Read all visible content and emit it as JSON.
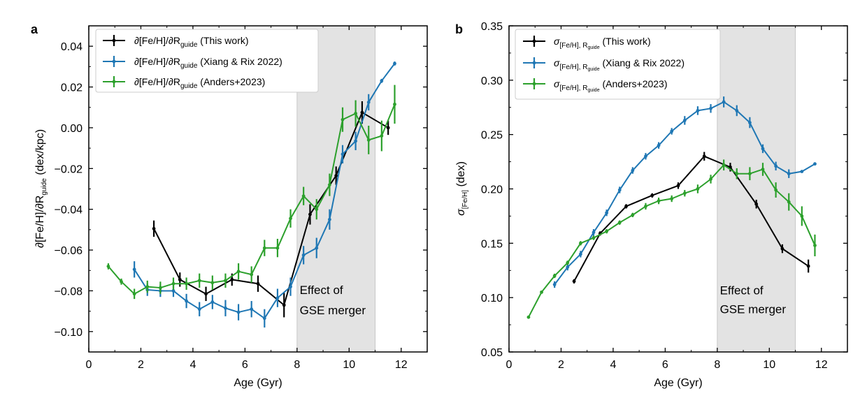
{
  "figure": {
    "colors": {
      "this_work": "#000000",
      "xiang": "#1f77b4",
      "anders": "#2ca02c",
      "shade": "#e3e3e3"
    }
  },
  "chart_data": [
    {
      "type": "line",
      "panel_letter": "a",
      "xlabel": "Age (Gyr)",
      "ylabel": {
        "main": "∂[Fe/H]/∂R",
        "sub": "guide",
        "tail": " (dex/kpc)"
      },
      "xlim": [
        0,
        13
      ],
      "ylim": [
        -0.11,
        0.05
      ],
      "xticks": [
        0,
        2,
        4,
        6,
        8,
        10,
        12
      ],
      "xtick_labels": [
        "0",
        "2",
        "4",
        "6",
        "8",
        "10",
        "12"
      ],
      "yticks": [
        -0.1,
        -0.08,
        -0.06,
        -0.04,
        -0.02,
        0.0,
        0.02,
        0.04
      ],
      "ytick_labels": [
        "−0.10",
        "−0.08",
        "−0.06",
        "−0.04",
        "−0.02",
        "0.00",
        "0.02",
        "0.04"
      ],
      "shaded_region": {
        "x": [
          8,
          11
        ]
      },
      "annotation": {
        "line1": "Effect of",
        "line2": "GSE merger",
        "x": 8.1,
        "y1": -0.0815,
        "y2": -0.0915
      },
      "legend_loc": "upper left",
      "series": [
        {
          "name": "This work",
          "legend": {
            "main": "∂[Fe/H]/∂R",
            "sub": "guide",
            "tail": " (This work)"
          },
          "color_key": "this_work",
          "x": [
            2.5,
            3.5,
            4.5,
            5.5,
            6.5,
            7.5,
            8.5,
            9.5,
            10.5,
            11.5
          ],
          "y": [
            -0.0495,
            -0.0745,
            -0.0815,
            -0.0745,
            -0.0765,
            -0.087,
            -0.0425,
            -0.0235,
            0.0075,
            0.0
          ],
          "err": [
            0.004,
            0.0035,
            0.0035,
            0.003,
            0.004,
            0.006,
            0.005,
            0.0045,
            0.0055,
            0.0035
          ]
        },
        {
          "name": "Xiang & Rix 2022",
          "legend": {
            "main": "∂[Fe/H]/∂R",
            "sub": "guide",
            "tail": " (Xiang & Rix 2022)"
          },
          "color_key": "xiang",
          "x": [
            1.75,
            2.25,
            2.75,
            3.25,
            3.75,
            4.25,
            4.75,
            5.25,
            5.75,
            6.25,
            6.75,
            7.25,
            7.75,
            8.25,
            8.75,
            9.25,
            9.75,
            10.25,
            10.75,
            11.25,
            11.75
          ],
          "y": [
            -0.0695,
            -0.0795,
            -0.08,
            -0.08,
            -0.085,
            -0.089,
            -0.0855,
            -0.0885,
            -0.0905,
            -0.089,
            -0.0935,
            -0.0835,
            -0.078,
            -0.0625,
            -0.059,
            -0.045,
            -0.013,
            -0.0065,
            0.0125,
            0.023,
            0.0315
          ],
          "err": [
            0.004,
            0.003,
            0.003,
            0.003,
            0.0035,
            0.0035,
            0.0035,
            0.004,
            0.004,
            0.004,
            0.0045,
            0.0045,
            0.0045,
            0.0045,
            0.005,
            0.005,
            0.0045,
            0.0045,
            0.004,
            0.001,
            0.001
          ]
        },
        {
          "name": "Anders+2023",
          "legend": {
            "main": "∂[Fe/H]/∂R",
            "sub": "guide",
            "tail": " (Anders+2023)"
          },
          "color_key": "anders",
          "x": [
            0.75,
            1.25,
            1.75,
            2.25,
            2.75,
            3.25,
            3.75,
            4.25,
            4.75,
            5.25,
            5.75,
            6.25,
            6.75,
            7.25,
            7.75,
            8.25,
            8.75,
            9.25,
            9.75,
            10.25,
            10.75,
            11.25,
            11.75
          ],
          "y": [
            -0.068,
            -0.0755,
            -0.0815,
            -0.078,
            -0.0785,
            -0.0765,
            -0.0765,
            -0.075,
            -0.076,
            -0.075,
            -0.0705,
            -0.072,
            -0.059,
            -0.059,
            -0.0445,
            -0.0335,
            -0.04,
            -0.028,
            0.004,
            0.007,
            -0.006,
            -0.004,
            0.0115
          ],
          "err": [
            0.0015,
            0.0015,
            0.0025,
            0.003,
            0.003,
            0.003,
            0.003,
            0.0035,
            0.0035,
            0.0035,
            0.004,
            0.004,
            0.004,
            0.0045,
            0.0045,
            0.0045,
            0.005,
            0.0055,
            0.006,
            0.0065,
            0.007,
            0.0075,
            0.0095
          ]
        }
      ]
    },
    {
      "type": "line",
      "panel_letter": "b",
      "xlabel": "Age (Gyr)",
      "ylabel": {
        "main": "σ",
        "sub": "[Fe/H]",
        "tail": " (dex)"
      },
      "xlim": [
        0,
        13
      ],
      "ylim": [
        0.05,
        0.35
      ],
      "xticks": [
        0,
        2,
        4,
        6,
        8,
        10,
        12
      ],
      "xtick_labels": [
        "0",
        "2",
        "4",
        "6",
        "8",
        "10",
        "12"
      ],
      "yticks": [
        0.05,
        0.1,
        0.15,
        0.2,
        0.25,
        0.3,
        0.35
      ],
      "ytick_labels": [
        "0.05",
        "0.10",
        "0.15",
        "0.20",
        "0.25",
        "0.30",
        "0.35"
      ],
      "shaded_region": {
        "x": [
          8,
          11
        ]
      },
      "annotation": {
        "line1": "Effect of",
        "line2": "GSE merger",
        "x": 8.1,
        "y1": 0.103,
        "y2": 0.0855
      },
      "legend_loc": "upper left",
      "series": [
        {
          "name": "This work",
          "legend": {
            "main": "σ",
            "sub": "[Fe/H],  R",
            "sub2": "guide",
            "tail": " (This work)"
          },
          "color_key": "this_work",
          "x": [
            2.5,
            3.5,
            4.5,
            5.5,
            6.5,
            7.5,
            8.5,
            9.5,
            10.5,
            11.5
          ],
          "y": [
            0.115,
            0.159,
            0.184,
            0.194,
            0.203,
            0.23,
            0.22,
            0.186,
            0.145,
            0.129
          ],
          "err": [
            0.002,
            0.002,
            0.002,
            0.002,
            0.003,
            0.004,
            0.004,
            0.004,
            0.004,
            0.006
          ]
        },
        {
          "name": "Xiang & Rix 2022",
          "legend": {
            "main": "σ",
            "sub": "[Fe/H],  R",
            "sub2": "guide",
            "tail": " (Xiang & Rix 2022)"
          },
          "color_key": "xiang",
          "x": [
            1.75,
            2.25,
            2.75,
            3.25,
            3.75,
            4.25,
            4.75,
            5.25,
            5.75,
            6.25,
            6.75,
            7.25,
            7.75,
            8.25,
            8.75,
            9.25,
            9.75,
            10.25,
            10.75,
            11.25,
            11.75
          ],
          "y": [
            0.112,
            0.128,
            0.14,
            0.16,
            0.178,
            0.199,
            0.217,
            0.23,
            0.24,
            0.253,
            0.263,
            0.272,
            0.274,
            0.28,
            0.272,
            0.261,
            0.237,
            0.221,
            0.214,
            0.216,
            0.223
          ],
          "err": [
            0.003,
            0.003,
            0.003,
            0.003,
            0.003,
            0.003,
            0.003,
            0.003,
            0.003,
            0.003,
            0.004,
            0.004,
            0.004,
            0.005,
            0.005,
            0.005,
            0.004,
            0.004,
            0.004,
            0.001,
            0.001
          ]
        },
        {
          "name": "Anders+2023",
          "legend": {
            "main": "σ",
            "sub": "[Fe/H],  R",
            "sub2": "guide",
            "tail": " (Anders+2023)"
          },
          "color_key": "anders",
          "x": [
            0.75,
            1.25,
            1.75,
            2.25,
            2.75,
            3.25,
            3.75,
            4.25,
            4.75,
            5.25,
            5.75,
            6.25,
            6.75,
            7.25,
            7.75,
            8.25,
            8.75,
            9.25,
            9.75,
            10.25,
            10.75,
            11.25,
            11.75
          ],
          "y": [
            0.082,
            0.105,
            0.12,
            0.132,
            0.15,
            0.155,
            0.161,
            0.169,
            0.176,
            0.184,
            0.189,
            0.191,
            0.196,
            0.2,
            0.209,
            0.222,
            0.214,
            0.214,
            0.218,
            0.199,
            0.188,
            0.175,
            0.148
          ],
          "err": [
            0.001,
            0.001,
            0.002,
            0.002,
            0.002,
            0.002,
            0.002,
            0.002,
            0.002,
            0.003,
            0.003,
            0.003,
            0.003,
            0.004,
            0.004,
            0.005,
            0.005,
            0.006,
            0.006,
            0.007,
            0.008,
            0.009,
            0.01
          ]
        }
      ]
    }
  ]
}
